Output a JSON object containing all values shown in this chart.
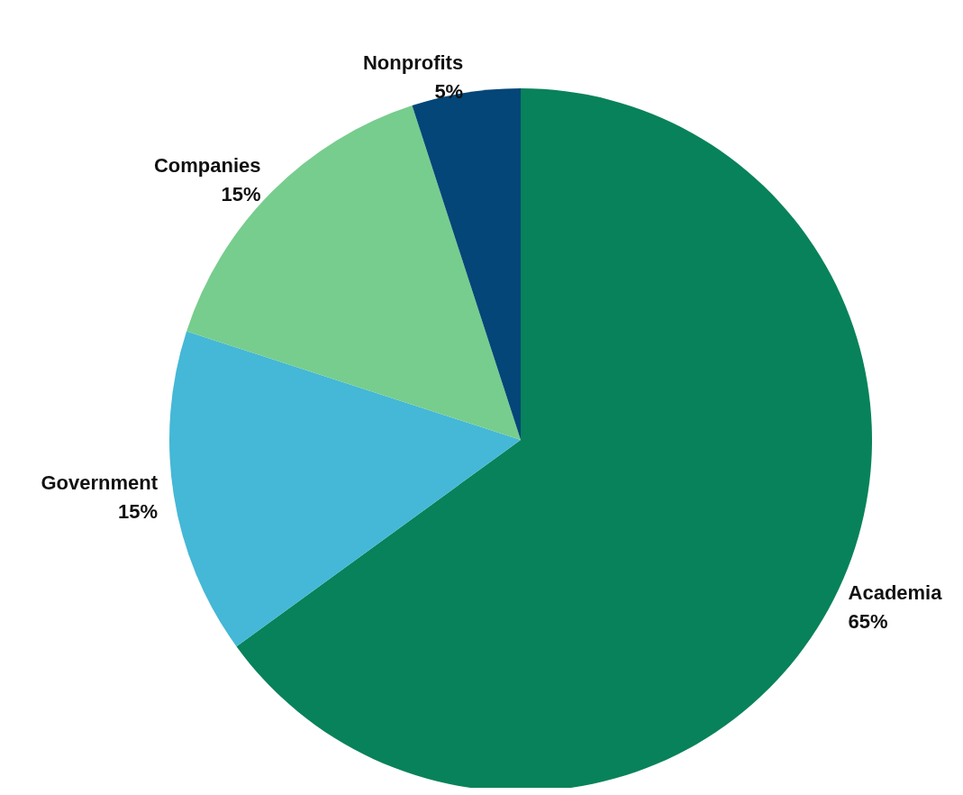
{
  "chart_data": {
    "type": "pie",
    "categories": [
      "Academia",
      "Government",
      "Companies",
      "Nonprofits"
    ],
    "values": [
      65,
      15,
      15,
      5
    ],
    "colors": [
      "#08825a",
      "#44b8d6",
      "#77cd8d",
      "#034677"
    ],
    "value_labels": [
      "65%",
      "15%",
      "15%",
      "5%"
    ],
    "legend": false
  }
}
